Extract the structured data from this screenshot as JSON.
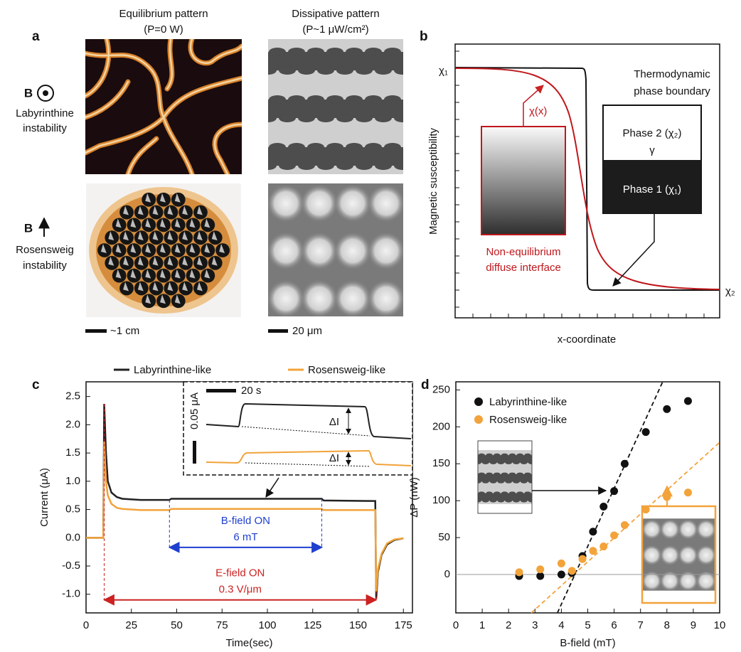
{
  "panel_a": {
    "label": "a",
    "columns": [
      {
        "title": "Equilibrium pattern",
        "subtitle": "(P=0 W)"
      },
      {
        "title": "Dissipative pattern",
        "subtitle": "(P~1 μW/cm²)"
      }
    ],
    "rows": [
      {
        "field": "B",
        "lines": [
          "Labyrinthine",
          "instability"
        ]
      },
      {
        "field": "B",
        "lines": [
          "Rosensweig",
          "instability"
        ]
      }
    ],
    "scale_bars": [
      "~1 cm",
      "20 μm"
    ]
  },
  "panel_b": {
    "label": "b",
    "x_label": "x-coordinate",
    "y_label": "Magnetic susceptibility",
    "chi_high": "χ₁",
    "chi_low": "χ₂",
    "boundary_title": [
      "Thermodynamic",
      "phase boundary"
    ],
    "phase_2": "Phase 2 (χ₂)",
    "interface": "γ",
    "phase_1": "Phase 1 (χ₁)",
    "profile": "χ(x)",
    "diffuse_title": [
      "Non-equilibrium",
      "diffuse interface"
    ]
  },
  "chart_data": [
    {
      "type": "line",
      "label": "c",
      "x_label": "Time(sec)",
      "y_label": "Current (μA)",
      "x": [
        0,
        9.5,
        10,
        11,
        12,
        14,
        17,
        20,
        30,
        46,
        47,
        130,
        131,
        159,
        159.5,
        160,
        161,
        163,
        166,
        170,
        175
      ],
      "series": [
        {
          "name": "Labyrinthine-like",
          "color": "#222222",
          "values": [
            0,
            0,
            2.37,
            1.5,
            1.0,
            0.8,
            0.72,
            0.69,
            0.67,
            0.67,
            0.69,
            0.69,
            0.66,
            0.65,
            0.65,
            -1.08,
            -0.6,
            -0.3,
            -0.12,
            -0.04,
            -0.01
          ]
        },
        {
          "name": "Rosensweig-like",
          "color": "#f2a33a",
          "values": [
            0,
            0,
            1.7,
            1.0,
            0.75,
            0.6,
            0.53,
            0.51,
            0.49,
            0.49,
            0.51,
            0.51,
            0.49,
            0.49,
            0.49,
            -0.95,
            -0.55,
            -0.28,
            -0.1,
            -0.03,
            -0.01
          ]
        }
      ],
      "xlim": [
        0,
        180
      ],
      "xticks": [
        0,
        25,
        50,
        75,
        100,
        125,
        150,
        175
      ],
      "ylim": [
        -1.33,
        2.76
      ],
      "yticks": [
        2.5,
        {
          "value": 2,
          "label": "2.0"
        },
        1.5,
        {
          "value": 1,
          "label": "1.0"
        },
        0.5,
        {
          "value": 0,
          "label": "0.0"
        },
        -0.5,
        {
          "value": -1,
          "label": "-1.0"
        }
      ],
      "annotations": [
        {
          "lines": [
            "B-field ON",
            "6 mT"
          ],
          "color": "#1f3fcf",
          "x": [
            46,
            130
          ],
          "y": -0.17
        },
        {
          "lines": [
            "E-field ON",
            "0.3 V/μm"
          ],
          "color": "#cc2222",
          "x": [
            10,
            160
          ],
          "y": -1.1
        }
      ],
      "inset": {
        "time_scale": "20 s",
        "current_scale": "0.05 μA",
        "delta": "ΔI"
      }
    },
    {
      "type": "scatter",
      "label": "d",
      "x_label": "B-field (mT)",
      "y_label": "ΔP (nW)",
      "xlim": [
        0,
        10
      ],
      "xticks": [
        0,
        1,
        2,
        3,
        4,
        5,
        6,
        7,
        8,
        9,
        10
      ],
      "ylim": [
        -52,
        261
      ],
      "yticks": [
        0,
        50,
        100,
        150,
        200,
        250
      ],
      "series": [
        {
          "name": "Labyrinthine-like",
          "color": "#111111",
          "x": [
            2.4,
            3.2,
            4.0,
            4.4,
            4.8,
            5.2,
            5.6,
            6.0,
            6.4,
            7.2,
            8.0,
            8.8
          ],
          "values": [
            -2,
            -2,
            0,
            2,
            25,
            58,
            92,
            113,
            150,
            193,
            224,
            235
          ]
        },
        {
          "name": "Rosensweig-like",
          "color": "#f2a33a",
          "x": [
            2.4,
            3.2,
            4.0,
            4.4,
            4.8,
            5.2,
            5.6,
            6.0,
            6.4,
            7.2,
            8.0,
            8.8
          ],
          "values": [
            3,
            7,
            15,
            5,
            21,
            32,
            38,
            53,
            67,
            88,
            105,
            111
          ]
        }
      ],
      "fits": [
        {
          "color": "#111111",
          "x": [
            3.85,
            7.84
          ],
          "values": [
            -52,
            261
          ]
        },
        {
          "color": "#f2a33a",
          "x": [
            2.86,
            10
          ],
          "values": [
            -52,
            179
          ]
        }
      ],
      "zero_line": true
    }
  ]
}
